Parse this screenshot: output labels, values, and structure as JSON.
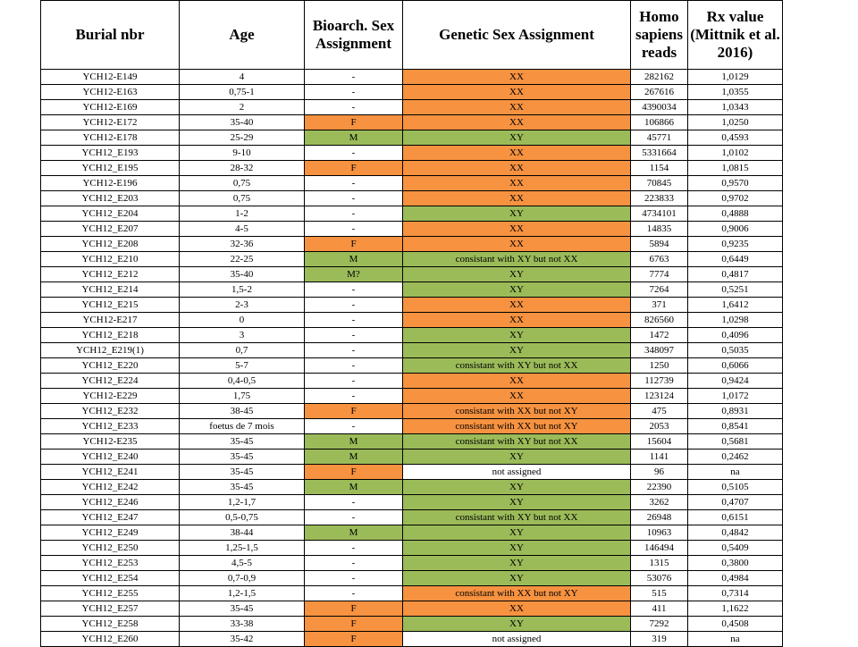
{
  "headers": [
    "Burial nbr",
    "Age",
    "Bioarch. Sex Assignment",
    "Genetic Sex Assignment",
    "Homo sapiens reads",
    "Rx value (Mittnik et al. 2016)"
  ],
  "colors": {
    "orange": "#f69240",
    "green": "#9bbb59"
  },
  "rows": [
    {
      "burial": "YCH12-E149",
      "age": "4",
      "bio": "-",
      "bio_color": "",
      "gen": "XX",
      "gen_color": "orange",
      "reads": "282162",
      "rx": "1,0129"
    },
    {
      "burial": "YCH12-E163",
      "age": "0,75-1",
      "bio": "-",
      "bio_color": "",
      "gen": "XX",
      "gen_color": "orange",
      "reads": "267616",
      "rx": "1,0355"
    },
    {
      "burial": "YCH12-E169",
      "age": "2",
      "bio": "-",
      "bio_color": "",
      "gen": "XX",
      "gen_color": "orange",
      "reads": "4390034",
      "rx": "1,0343"
    },
    {
      "burial": "YCH12-E172",
      "age": "35-40",
      "bio": "F",
      "bio_color": "orange",
      "gen": "XX",
      "gen_color": "orange",
      "reads": "106866",
      "rx": "1,0250"
    },
    {
      "burial": "YCH12-E178",
      "age": "25-29",
      "bio": "M",
      "bio_color": "green",
      "gen": "XY",
      "gen_color": "green",
      "reads": "45771",
      "rx": "0,4593"
    },
    {
      "burial": "YCH12_E193",
      "age": "9-10",
      "bio": "-",
      "bio_color": "",
      "gen": "XX",
      "gen_color": "orange",
      "reads": "5331664",
      "rx": "1,0102"
    },
    {
      "burial": "YCH12_E195",
      "age": "28-32",
      "bio": "F",
      "bio_color": "orange",
      "gen": "XX",
      "gen_color": "orange",
      "reads": "1154",
      "rx": "1,0815"
    },
    {
      "burial": "YCH12-E196",
      "age": "0,75",
      "bio": "-",
      "bio_color": "",
      "gen": "XX",
      "gen_color": "orange",
      "reads": "70845",
      "rx": "0,9570"
    },
    {
      "burial": "YCH12_E203",
      "age": "0,75",
      "bio": "-",
      "bio_color": "",
      "gen": "XX",
      "gen_color": "orange",
      "reads": "223833",
      "rx": "0,9702"
    },
    {
      "burial": "YCH12_E204",
      "age": "1-2",
      "bio": "-",
      "bio_color": "",
      "gen": "XY",
      "gen_color": "green",
      "reads": "4734101",
      "rx": "0,4888"
    },
    {
      "burial": "YCH12_E207",
      "age": "4-5",
      "bio": "-",
      "bio_color": "",
      "gen": "XX",
      "gen_color": "orange",
      "reads": "14835",
      "rx": "0,9006"
    },
    {
      "burial": "YCH12_E208",
      "age": "32-36",
      "bio": "F",
      "bio_color": "orange",
      "gen": "XX",
      "gen_color": "orange",
      "reads": "5894",
      "rx": "0,9235"
    },
    {
      "burial": "YCH12_E210",
      "age": "22-25",
      "bio": "M",
      "bio_color": "green",
      "gen": "consistant with XY but not XX",
      "gen_color": "green",
      "reads": "6763",
      "rx": "0,6449"
    },
    {
      "burial": "YCH12_E212",
      "age": "35-40",
      "bio": "M?",
      "bio_color": "green",
      "gen": "XY",
      "gen_color": "green",
      "reads": "7774",
      "rx": "0,4817"
    },
    {
      "burial": "YCH12_E214",
      "age": "1,5-2",
      "bio": "-",
      "bio_color": "",
      "gen": "XY",
      "gen_color": "green",
      "reads": "7264",
      "rx": "0,5251"
    },
    {
      "burial": "YCH12_E215",
      "age": "2-3",
      "bio": "-",
      "bio_color": "",
      "gen": "XX",
      "gen_color": "orange",
      "reads": "371",
      "rx": "1,6412"
    },
    {
      "burial": "YCH12-E217",
      "age": "0",
      "bio": "-",
      "bio_color": "",
      "gen": "XX",
      "gen_color": "orange",
      "reads": "826560",
      "rx": "1,0298"
    },
    {
      "burial": "YCH12_E218",
      "age": "3",
      "bio": "-",
      "bio_color": "",
      "gen": "XY",
      "gen_color": "green",
      "reads": "1472",
      "rx": "0,4096"
    },
    {
      "burial": "YCH12_E219(1)",
      "age": "0,7",
      "bio": "-",
      "bio_color": "",
      "gen": "XY",
      "gen_color": "green",
      "reads": "348097",
      "rx": "0,5035"
    },
    {
      "burial": "YCH12_E220",
      "age": "5-7",
      "bio": "-",
      "bio_color": "",
      "gen": "consistant with XY but not XX",
      "gen_color": "green",
      "reads": "1250",
      "rx": "0,6066"
    },
    {
      "burial": "YCH12_E224",
      "age": "0,4-0,5",
      "bio": "-",
      "bio_color": "",
      "gen": "XX",
      "gen_color": "orange",
      "reads": "112739",
      "rx": "0,9424"
    },
    {
      "burial": "YCH12-E229",
      "age": "1,75",
      "bio": "-",
      "bio_color": "",
      "gen": "XX",
      "gen_color": "orange",
      "reads": "123124",
      "rx": "1,0172"
    },
    {
      "burial": "YCH12_E232",
      "age": "38-45",
      "bio": "F",
      "bio_color": "orange",
      "gen": "consistant with XX but not XY",
      "gen_color": "orange",
      "reads": "475",
      "rx": "0,8931"
    },
    {
      "burial": "YCH12_E233",
      "age": "foetus de 7 mois",
      "bio": "-",
      "bio_color": "",
      "gen": "consistant with XX but not XY",
      "gen_color": "orange",
      "reads": "2053",
      "rx": "0,8541"
    },
    {
      "burial": "YCH12-E235",
      "age": "35-45",
      "bio": "M",
      "bio_color": "green",
      "gen": "consistant with XY but not XX",
      "gen_color": "green",
      "reads": "15604",
      "rx": "0,5681"
    },
    {
      "burial": "YCH12_E240",
      "age": "35-45",
      "bio": "M",
      "bio_color": "green",
      "gen": "XY",
      "gen_color": "green",
      "reads": "1141",
      "rx": "0,2462"
    },
    {
      "burial": "YCH12_E241",
      "age": "35-45",
      "bio": "F",
      "bio_color": "orange",
      "gen": "not assigned",
      "gen_color": "",
      "reads": "96",
      "rx": "na"
    },
    {
      "burial": "YCH12_E242",
      "age": "35-45",
      "bio": "M",
      "bio_color": "green",
      "gen": "XY",
      "gen_color": "green",
      "reads": "22390",
      "rx": "0,5105"
    },
    {
      "burial": "YCH12_E246",
      "age": "1,2-1,7",
      "bio": "-",
      "bio_color": "",
      "gen": "XY",
      "gen_color": "green",
      "reads": "3262",
      "rx": "0,4707"
    },
    {
      "burial": "YCH12_E247",
      "age": "0,5-0,75",
      "bio": "-",
      "bio_color": "",
      "gen": "consistant with XY but not XX",
      "gen_color": "green",
      "reads": "26948",
      "rx": "0,6151"
    },
    {
      "burial": "YCH12_E249",
      "age": "38-44",
      "bio": "M",
      "bio_color": "green",
      "gen": "XY",
      "gen_color": "green",
      "reads": "10963",
      "rx": "0,4842"
    },
    {
      "burial": "YCH12_E250",
      "age": "1,25-1,5",
      "bio": "-",
      "bio_color": "",
      "gen": "XY",
      "gen_color": "green",
      "reads": "146494",
      "rx": "0,5409"
    },
    {
      "burial": "YCH12_E253",
      "age": "4,5-5",
      "bio": "-",
      "bio_color": "",
      "gen": "XY",
      "gen_color": "green",
      "reads": "1315",
      "rx": "0,3800"
    },
    {
      "burial": "YCH12_E254",
      "age": "0,7-0,9",
      "bio": "-",
      "bio_color": "",
      "gen": "XY",
      "gen_color": "green",
      "reads": "53076",
      "rx": "0,4984"
    },
    {
      "burial": "YCH12_E255",
      "age": "1,2-1,5",
      "bio": "-",
      "bio_color": "",
      "gen": "consistant with XX but not XY",
      "gen_color": "orange",
      "reads": "515",
      "rx": "0,7314"
    },
    {
      "burial": "YCH12_E257",
      "age": "35-45",
      "bio": "F",
      "bio_color": "orange",
      "gen": "XX",
      "gen_color": "orange",
      "reads": "411",
      "rx": "1,1622"
    },
    {
      "burial": "YCH12_E258",
      "age": "33-38",
      "bio": "F",
      "bio_color": "orange",
      "gen": "XY",
      "gen_color": "green",
      "reads": "7292",
      "rx": "0,4508"
    },
    {
      "burial": "YCH12_E260",
      "age": "35-42",
      "bio": "F",
      "bio_color": "orange",
      "gen": "not assigned",
      "gen_color": "",
      "reads": "319",
      "rx": "na"
    }
  ]
}
